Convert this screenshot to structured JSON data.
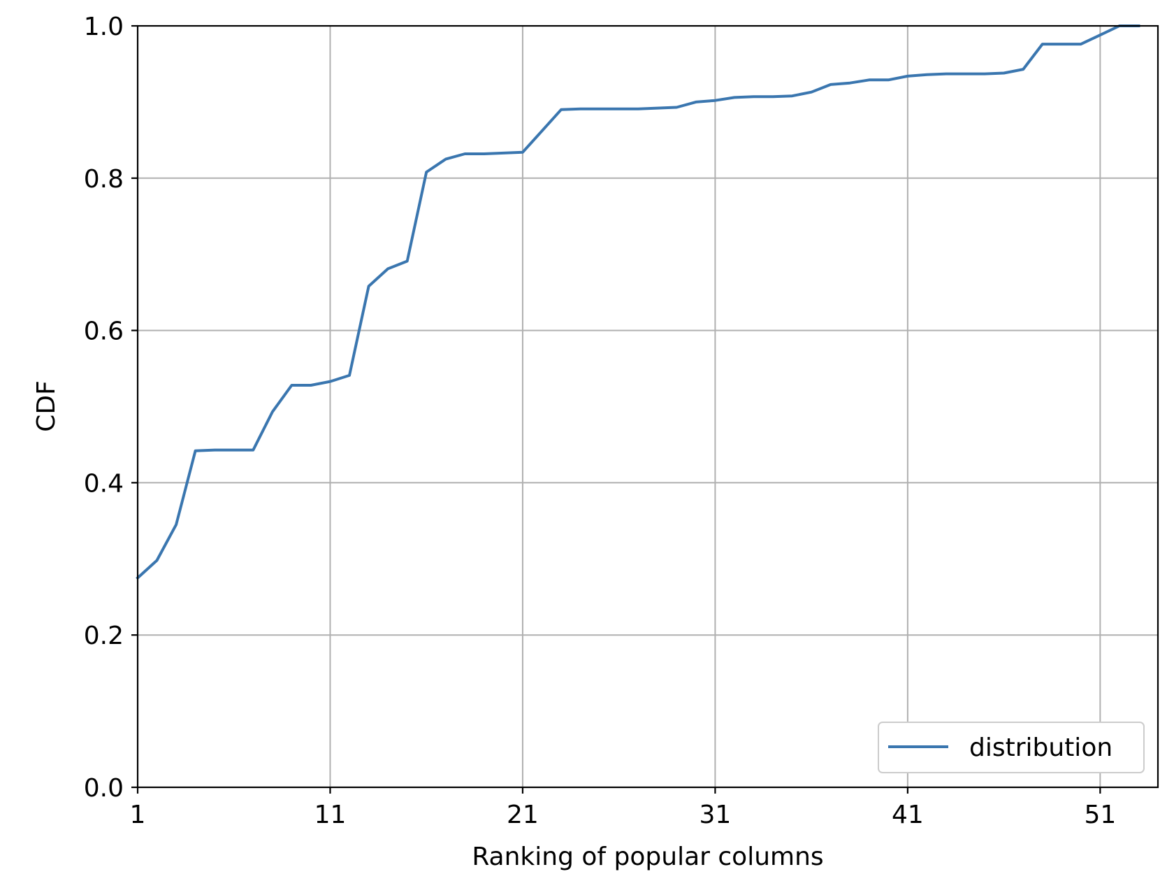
{
  "chart_data": {
    "type": "line",
    "title": "",
    "xlabel": "Ranking of popular columns",
    "ylabel": "CDF",
    "xlim": [
      1,
      54
    ],
    "ylim": [
      0.0,
      1.0
    ],
    "xticks": [
      1,
      11,
      21,
      31,
      41,
      51
    ],
    "xtick_labels": [
      "1",
      "11",
      "21",
      "31",
      "41",
      "51"
    ],
    "yticks": [
      0.0,
      0.2,
      0.4,
      0.6,
      0.8,
      1.0
    ],
    "ytick_labels": [
      "0.0",
      "0.2",
      "0.4",
      "0.6",
      "0.8",
      "1.0"
    ],
    "grid": true,
    "legend_position": "bottom-right",
    "series": [
      {
        "name": "distribution",
        "color": "#3A76AF",
        "x": [
          1,
          2,
          3,
          4,
          5,
          6,
          7,
          8,
          9,
          10,
          11,
          12,
          13,
          14,
          15,
          16,
          17,
          18,
          19,
          20,
          21,
          22,
          23,
          24,
          25,
          26,
          27,
          28,
          29,
          30,
          31,
          32,
          33,
          34,
          35,
          36,
          37,
          38,
          39,
          40,
          41,
          42,
          43,
          44,
          45,
          46,
          47,
          48,
          49,
          50,
          51,
          52,
          53
        ],
        "y": [
          0.275,
          0.298,
          0.345,
          0.442,
          0.443,
          0.443,
          0.443,
          0.493,
          0.528,
          0.528,
          0.533,
          0.541,
          0.658,
          0.681,
          0.691,
          0.808,
          0.825,
          0.832,
          0.832,
          0.833,
          0.834,
          0.862,
          0.89,
          0.891,
          0.891,
          0.891,
          0.891,
          0.892,
          0.893,
          0.9,
          0.902,
          0.906,
          0.907,
          0.907,
          0.908,
          0.913,
          0.923,
          0.925,
          0.929,
          0.929,
          0.934,
          0.936,
          0.937,
          0.937,
          0.937,
          0.938,
          0.943,
          0.976,
          0.976,
          0.976,
          0.988,
          1.0,
          1.0
        ]
      }
    ]
  }
}
